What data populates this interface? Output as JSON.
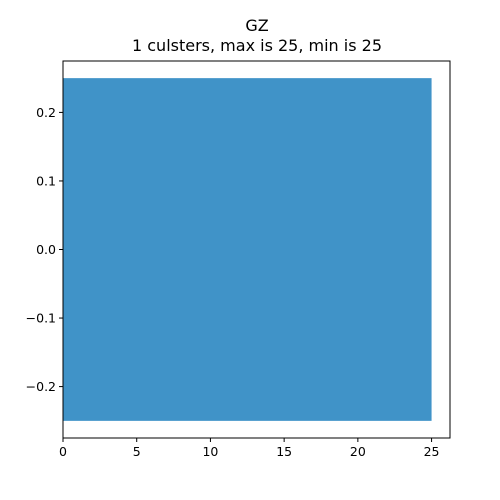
{
  "chart_data": {
    "type": "bar",
    "orientation": "horizontal",
    "title": "GZ",
    "subtitle": "1 culsters, max is 25, min is 25",
    "xlabel": "",
    "ylabel": "",
    "xlim": [
      0,
      26.25
    ],
    "ylim": [
      -0.275,
      0.275
    ],
    "x_ticks": [
      "0",
      "5",
      "10",
      "15",
      "20",
      "25"
    ],
    "x_tick_values": [
      0,
      5,
      10,
      15,
      20,
      25
    ],
    "y_ticks": [
      "0.2",
      "0.1",
      "0.0",
      "−0.1",
      "−0.2"
    ],
    "y_tick_values": [
      0.2,
      0.1,
      0.0,
      -0.1,
      -0.2
    ],
    "bars": [
      {
        "y": 0,
        "value": 25,
        "height": 0.5
      }
    ],
    "bar_color": "#4093c8",
    "grid": false,
    "legend": "none"
  }
}
